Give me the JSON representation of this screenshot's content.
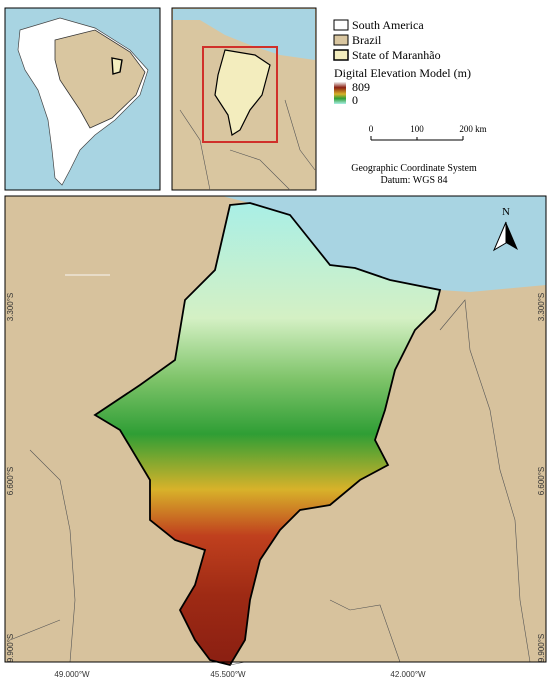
{
  "legend": {
    "items": [
      "South America",
      "Brazil",
      "State of Maranhão"
    ],
    "dem_title": "Digital Elevation Model (m)",
    "dem_max": "809",
    "dem_min": "0"
  },
  "scale_bar": {
    "labels": [
      "0",
      "100",
      "200 km"
    ]
  },
  "crs": {
    "system": "Geographic Coordinate System",
    "datum": "Datum: WGS 84"
  },
  "north_arrow": "N",
  "coordinates": {
    "latitudes": [
      "3.300°S",
      "6.600°S",
      "9.900°S"
    ],
    "longitudes": [
      "49.000°W",
      "45.500°W",
      "42.000°W"
    ]
  }
}
